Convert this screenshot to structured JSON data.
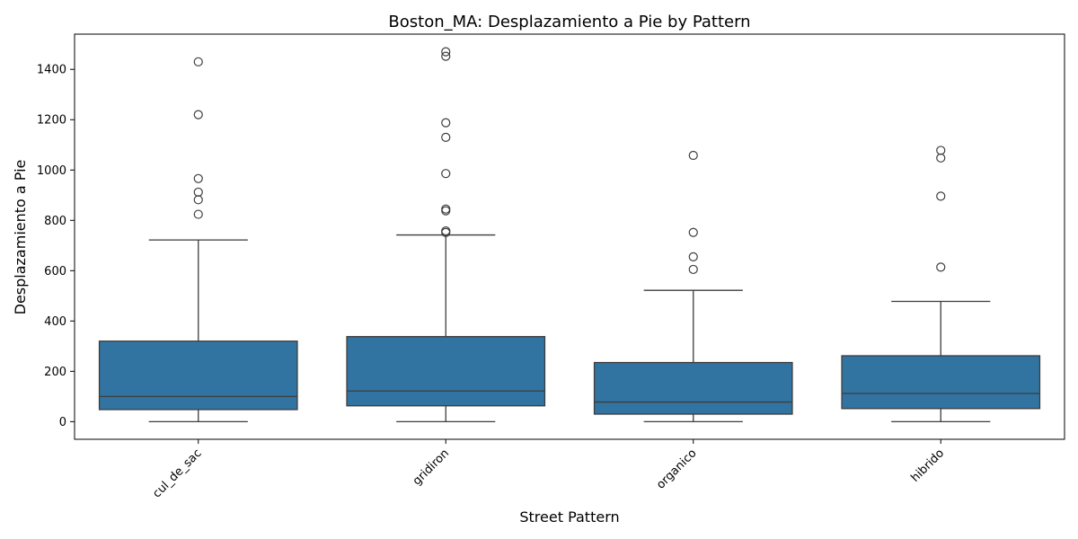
{
  "chart_data": {
    "type": "box",
    "title": "Boston_MA: Desplazamiento a Pie by Pattern",
    "xlabel": "Street Pattern",
    "ylabel": "Desplazamiento a Pie",
    "ylim": [
      -70,
      1540
    ],
    "yticks": [
      0,
      200,
      400,
      600,
      800,
      1000,
      1200,
      1400
    ],
    "grid": false,
    "box_color": "#3274a1",
    "line_color": "#3d3d3d",
    "categories": [
      "cul_de_sac",
      "gridiron",
      "organico",
      "hibrido"
    ],
    "boxes": [
      {
        "category": "cul_de_sac",
        "whislo": 0,
        "q1": 48,
        "med": 100,
        "q3": 320,
        "whishi": 722,
        "fliers": [
          1430,
          1220,
          966,
          912,
          882,
          824
        ]
      },
      {
        "category": "gridiron",
        "whislo": 0,
        "q1": 63,
        "med": 122,
        "q3": 338,
        "whishi": 742,
        "fliers": [
          1470,
          1452,
          1188,
          1130,
          986,
          845,
          838,
          758,
          752
        ]
      },
      {
        "category": "organico",
        "whislo": 0,
        "q1": 30,
        "med": 78,
        "q3": 235,
        "whishi": 522,
        "fliers": [
          1058,
          752,
          655,
          605
        ]
      },
      {
        "category": "hibrido",
        "whislo": 0,
        "q1": 52,
        "med": 112,
        "q3": 262,
        "whishi": 478,
        "fliers": [
          1078,
          1048,
          896,
          614
        ]
      }
    ]
  }
}
